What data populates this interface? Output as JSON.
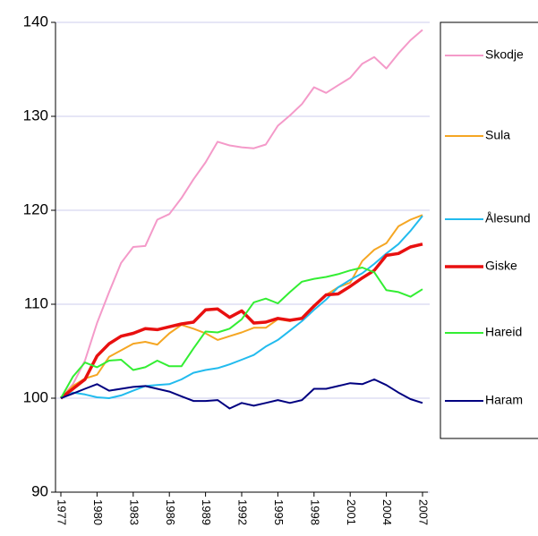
{
  "chart_data": {
    "type": "line",
    "x": [
      1977,
      1978,
      1979,
      1980,
      1981,
      1982,
      1983,
      1984,
      1985,
      1986,
      1987,
      1988,
      1989,
      1990,
      1991,
      1992,
      1993,
      1994,
      1995,
      1996,
      1997,
      1998,
      1999,
      2000,
      2001,
      2002,
      2003,
      2004,
      2005,
      2006,
      2007
    ],
    "xlim": [
      1977,
      2007
    ],
    "xticks": [
      1977,
      1980,
      1983,
      1986,
      1989,
      1992,
      1995,
      1998,
      2001,
      2004,
      2007
    ],
    "ylim": [
      90,
      140
    ],
    "yticks": [
      90,
      100,
      110,
      120,
      130,
      140
    ],
    "grid": true,
    "legend": "right",
    "series": [
      {
        "name": "Skodje",
        "color": "#f49ac9",
        "values": [
          100,
          101.5,
          104,
          108,
          111.3,
          114.4,
          116.1,
          116.2,
          119,
          119.6,
          121.3,
          123.3,
          125.1,
          127.3,
          126.9,
          126.7,
          126.6,
          127,
          129,
          130.1,
          131.3,
          133.1,
          132.5,
          133.3,
          134.1,
          135.6,
          136.3,
          135.1,
          136.7,
          138.1,
          139.2
        ]
      },
      {
        "name": "Sula",
        "color": "#f5a623",
        "values": [
          100,
          101.3,
          102.1,
          102.5,
          104.4,
          105.1,
          105.8,
          106,
          105.7,
          106.9,
          107.8,
          107.4,
          106.9,
          106.2,
          106.6,
          107,
          107.5,
          107.5,
          108.4,
          108.2,
          108.6,
          109.9,
          111,
          111.8,
          112.3,
          114.6,
          115.8,
          116.5,
          118.3,
          119,
          119.5
        ]
      },
      {
        "name": "Ålesund",
        "color": "#22bbee",
        "values": [
          100,
          100.6,
          100.4,
          100.1,
          100,
          100.3,
          100.8,
          101.3,
          101.4,
          101.5,
          102,
          102.7,
          103,
          103.2,
          103.6,
          104.1,
          104.6,
          105.5,
          106.2,
          107.2,
          108.2,
          109.4,
          110.5,
          111.8,
          112.6,
          113.3,
          114.3,
          115.4,
          116.4,
          117.8,
          119.4
        ]
      },
      {
        "name": "Giske",
        "color": "#e81010",
        "values": [
          100,
          101,
          102,
          104.5,
          105.8,
          106.6,
          106.9,
          107.4,
          107.3,
          107.6,
          107.9,
          108.1,
          109.4,
          109.5,
          108.6,
          109.3,
          108,
          108.1,
          108.5,
          108.3,
          108.5,
          109.8,
          111,
          111.1,
          111.9,
          112.8,
          113.6,
          115.2,
          115.4,
          116.1,
          116.4
        ]
      },
      {
        "name": "Hareid",
        "color": "#33ee33",
        "values": [
          100,
          102.3,
          103.8,
          103.3,
          104,
          104.1,
          103,
          103.3,
          104,
          103.4,
          103.4,
          105.3,
          107.1,
          107,
          107.4,
          108.4,
          110.2,
          110.6,
          110.1,
          111.3,
          112.4,
          112.7,
          112.9,
          113.2,
          113.6,
          113.9,
          113.4,
          111.5,
          111.3,
          110.8,
          111.6
        ]
      },
      {
        "name": "Haram",
        "color": "#000080",
        "values": [
          100,
          100.5,
          101,
          101.5,
          100.8,
          101,
          101.2,
          101.3,
          101,
          100.7,
          100.2,
          99.7,
          99.7,
          99.8,
          98.9,
          99.5,
          99.2,
          99.5,
          99.8,
          99.5,
          99.8,
          101,
          101,
          101.3,
          101.6,
          101.5,
          102,
          101.4,
          100.6,
          99.9,
          99.5
        ]
      }
    ]
  }
}
